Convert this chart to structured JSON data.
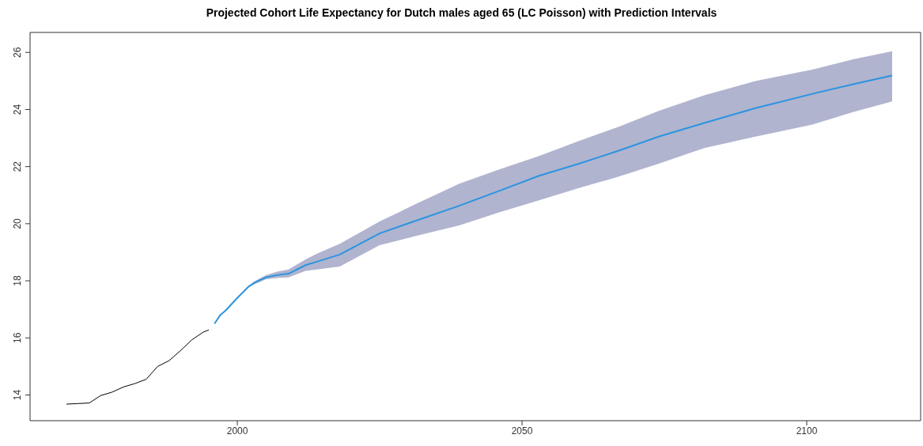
{
  "chart_data": {
    "type": "line",
    "title": "Projected Cohort Life Expectancy for Dutch males aged 65 (LC Poisson) with Prediction Intervals",
    "xlim": [
      1963.6,
      2120
    ],
    "xticks": [
      2000,
      2050,
      2100
    ],
    "ylim": [
      13.1,
      26.7
    ],
    "yticks": [
      14,
      16,
      18,
      20,
      22,
      24,
      26
    ],
    "series": [
      {
        "color": "#000000",
        "x": [
          1970,
          1972,
          1974,
          1976,
          1978,
          1980,
          1982,
          1984,
          1986,
          1988,
          1990,
          1992,
          1994,
          1995
        ],
        "values": [
          13.68,
          13.7,
          13.72,
          13.98,
          14.1,
          14.28,
          14.4,
          14.55,
          15.0,
          15.2,
          15.55,
          15.93,
          16.2,
          16.28
        ]
      },
      {
        "color": "#2b94e0",
        "x": [
          1996,
          1997,
          1998,
          2000,
          2002,
          2003,
          2005,
          2007,
          2009,
          2012,
          2014,
          2018,
          2025,
          2032,
          2039,
          2046,
          2053,
          2060,
          2067,
          2074,
          2082,
          2091,
          2101,
          2108,
          2115
        ],
        "values": [
          16.5,
          16.8,
          16.97,
          17.4,
          17.8,
          17.93,
          18.12,
          18.2,
          18.25,
          18.55,
          18.67,
          18.92,
          19.66,
          20.15,
          20.63,
          21.15,
          21.68,
          22.1,
          22.56,
          23.05,
          23.53,
          24.05,
          24.55,
          24.88,
          25.19
        ],
        "lower": [
          16.5,
          16.8,
          16.97,
          17.4,
          17.78,
          17.88,
          18.05,
          18.1,
          18.12,
          18.35,
          18.4,
          18.5,
          19.25,
          19.6,
          19.94,
          20.4,
          20.82,
          21.25,
          21.65,
          22.1,
          22.65,
          23.05,
          23.47,
          23.9,
          24.28
        ],
        "upper": [
          16.5,
          16.8,
          16.97,
          17.4,
          17.82,
          17.98,
          18.2,
          18.32,
          18.4,
          18.75,
          18.95,
          19.3,
          20.08,
          20.75,
          21.4,
          21.9,
          22.37,
          22.9,
          23.4,
          23.95,
          24.5,
          25.0,
          25.4,
          25.75,
          26.04
        ]
      }
    ]
  }
}
